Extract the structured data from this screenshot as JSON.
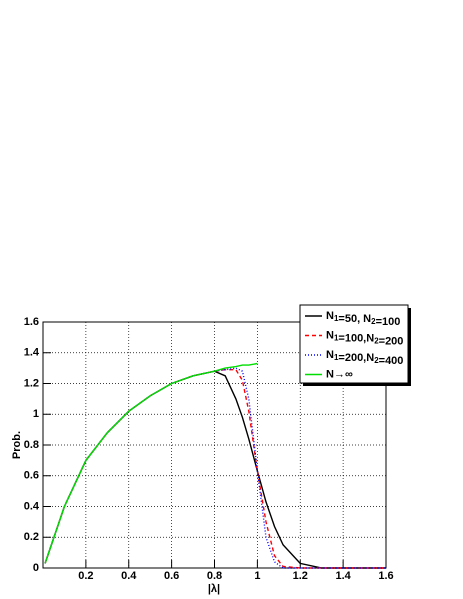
{
  "chart_data": {
    "type": "line",
    "x_label": "|λ|",
    "y_label": "Prob.",
    "x": [
      0.01,
      0.1,
      0.2,
      0.3,
      0.4,
      0.5,
      0.6,
      0.7,
      0.8,
      0.85,
      0.9,
      0.93,
      0.96,
      1.0,
      1.04,
      1.08,
      1.12,
      1.2,
      1.3,
      1.6
    ],
    "series": [
      {
        "name": "N1=50,  N2=100",
        "color": "#000000",
        "dash": "none",
        "values": [
          0.03,
          0.4,
          0.7,
          0.88,
          1.02,
          1.12,
          1.2,
          1.25,
          1.28,
          1.25,
          1.1,
          0.98,
          0.84,
          0.63,
          0.43,
          0.27,
          0.15,
          0.03,
          0,
          0
        ]
      },
      {
        "name": "N1=100,N2=200",
        "color": "#ff0000",
        "dash": "4 3",
        "values": [
          0.03,
          0.4,
          0.7,
          0.88,
          1.02,
          1.12,
          1.2,
          1.25,
          1.28,
          1.29,
          1.29,
          1.22,
          1.02,
          0.63,
          0.3,
          0.08,
          0.01,
          0,
          0,
          0
        ]
      },
      {
        "name": "N1=200,N2=400",
        "color": "#0000ff",
        "dash": "1 2",
        "values": [
          0.03,
          0.4,
          0.7,
          0.88,
          1.02,
          1.12,
          1.2,
          1.25,
          1.28,
          1.29,
          1.3,
          1.28,
          1.1,
          0.63,
          0.2,
          0.04,
          0,
          0,
          0,
          0
        ]
      },
      {
        "name": "N→∞",
        "color": "#00dd00",
        "dash": "none",
        "values": [
          0.03,
          0.4,
          0.7,
          0.88,
          1.02,
          1.12,
          1.2,
          1.25,
          1.28,
          1.3,
          1.31,
          1.32,
          1.32,
          1.33,
          null,
          null,
          null,
          null,
          null,
          null
        ]
      }
    ],
    "xlim": [
      0,
      1.6
    ],
    "xticks": [
      0.2,
      0.4,
      0.6,
      0.8,
      1,
      1.2,
      1.4,
      1.6
    ],
    "ylim": [
      0,
      1.6
    ],
    "yticks": [
      0,
      0.2,
      0.4,
      0.6,
      0.8,
      1,
      1.2,
      1.4,
      1.6
    ],
    "grid": true,
    "legend": "top-right"
  }
}
